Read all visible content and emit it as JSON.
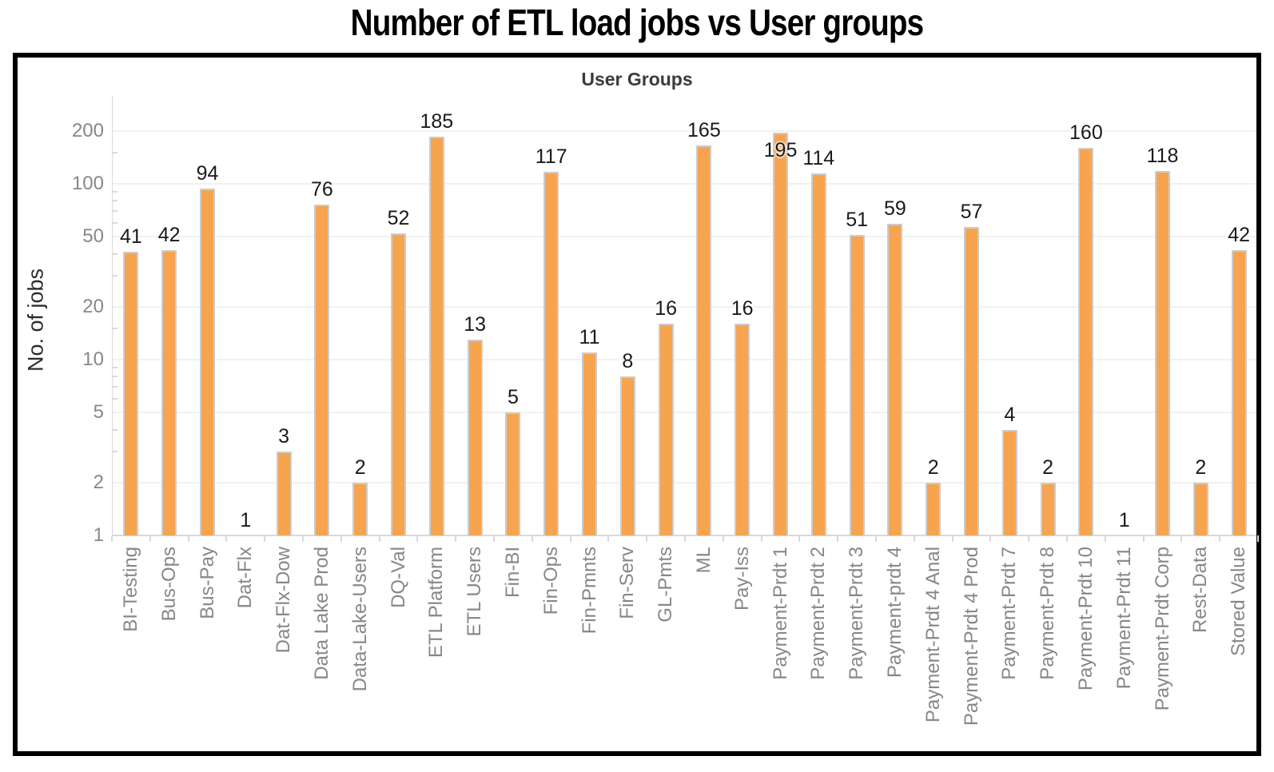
{
  "page": {
    "title": "Number of ETL load jobs vs User groups"
  },
  "chart_data": {
    "type": "bar",
    "title": "Number of ETL load jobs vs User groups",
    "inner_title": "User Groups",
    "xlabel": "User Groups",
    "ylabel": "No. of jobs",
    "yscale": "log",
    "ylim": [
      1,
      240
    ],
    "yticks": [
      1,
      2,
      5,
      10,
      20,
      50,
      100,
      200
    ],
    "minor_yticks": [
      3,
      4,
      6,
      7,
      8,
      9,
      15,
      30,
      40,
      60,
      70,
      80,
      90,
      150
    ],
    "grid": "horizontal",
    "legend": "none",
    "categories": [
      "BI-Testing",
      "Bus-Ops",
      "Bus-Pay",
      "Dat-Flx",
      "Dat-Flx-Dow",
      "Data Lake Prod",
      "Data-Lake-Users",
      "DQ-Val",
      "ETL Platform",
      "ETL Users",
      "Fin-BI",
      "Fin-Ops",
      "Fin-Pmnts",
      "Fin-Serv",
      "GL-Pmts",
      "ML",
      "Pay-Iss",
      "Payment-Prdt 1",
      "Payment-Prdt 2",
      "Payment-Prdt 3",
      "Payment-prdt 4",
      "Payment-Prdt 4 Anal",
      "Payment-Prdt 4 Prod",
      "Payment-Prdt 7",
      "Payment-Prdt 8",
      "Payment-Prdt 10",
      "Payment-Prdt 11",
      "Payment-Prdt Corp",
      "Rest-Data",
      "Stored Value"
    ],
    "values": [
      41,
      42,
      94,
      1,
      3,
      76,
      2,
      52,
      185,
      13,
      5,
      117,
      11,
      8,
      16,
      165,
      16,
      195,
      114,
      51,
      59,
      2,
      57,
      4,
      2,
      160,
      1,
      118,
      2,
      42
    ],
    "colors": {
      "bar": "#F7A44F",
      "bar_border": "#CCCCCC",
      "grid": "#F1F1F1",
      "axis_line": "#D9D9D9",
      "tick_label": "#878787",
      "data_label": "#1A1A1A",
      "title": "#000000",
      "inner_title": "#3B3B3B",
      "ylabel": "#2B2B2B",
      "frame_border": "#000000",
      "background": "#FFFFFF"
    }
  }
}
